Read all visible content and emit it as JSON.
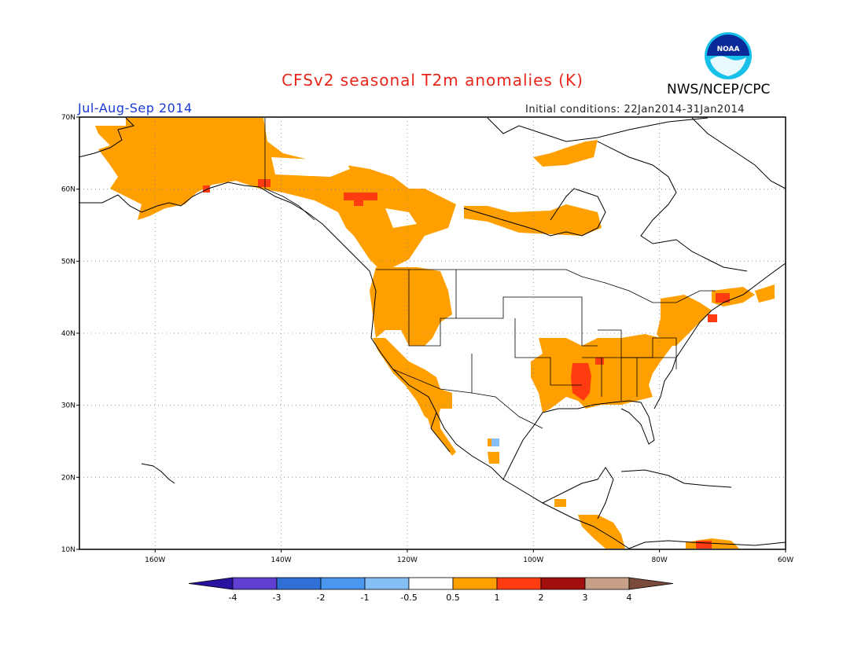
{
  "header": {
    "title": "CFSv2 seasonal T2m anomalies (K)",
    "period": "Jul-Aug-Sep 2014",
    "initial_conditions": "Initial conditions: 22Jan2014-31Jan2014",
    "agency": "NWS/NCEP/CPC",
    "logo_text": "NOAA"
  },
  "colors": {
    "title": "#e8261b",
    "period": "#1a3ad8",
    "ocean_logo": "#1e6fd0",
    "frame": "#000000"
  },
  "map": {
    "projection": "lat-lon",
    "lon_range": [
      -172,
      -60
    ],
    "lat_range": [
      10,
      70
    ],
    "lat_ticks": [
      "10N",
      "20N",
      "30N",
      "40N",
      "50N",
      "60N",
      "70N"
    ],
    "lon_ticks": [
      "160W",
      "140W",
      "120W",
      "100W",
      "80W",
      "60W"
    ],
    "gridlines": "dotted"
  },
  "colorbar": {
    "labels": [
      "-4",
      "-3",
      "-2",
      "-1",
      "-0.5",
      "0.5",
      "1",
      "2",
      "3",
      "4"
    ],
    "colors": [
      "#2a11a0",
      "#5e3fd1",
      "#2f6fd6",
      "#4a97f0",
      "#86bff6",
      "#ffffff",
      "#ff9f00",
      "#ff3c0f",
      "#a10e0e",
      "#c8a08a",
      "#7a4a3a"
    ]
  },
  "anomaly_regions": [
    {
      "name": "alaska-yukon",
      "class": "0.5 to 1"
    },
    {
      "name": "western-canada",
      "class": "0.5 to 1"
    },
    {
      "name": "hudson-bay-region",
      "class": "0.5 to 1"
    },
    {
      "name": "pacific-northwest",
      "class": "0.5 to 1"
    },
    {
      "name": "california-baja",
      "class": "0.5 to 1"
    },
    {
      "name": "mississippi-valley-southeast",
      "class": "0.5 to 1"
    },
    {
      "name": "northeast-us",
      "class": "0.5 to 1"
    },
    {
      "name": "mid-mississippi",
      "class": "1 to 2"
    },
    {
      "name": "alberta-spot",
      "class": "1 to 2"
    }
  ]
}
